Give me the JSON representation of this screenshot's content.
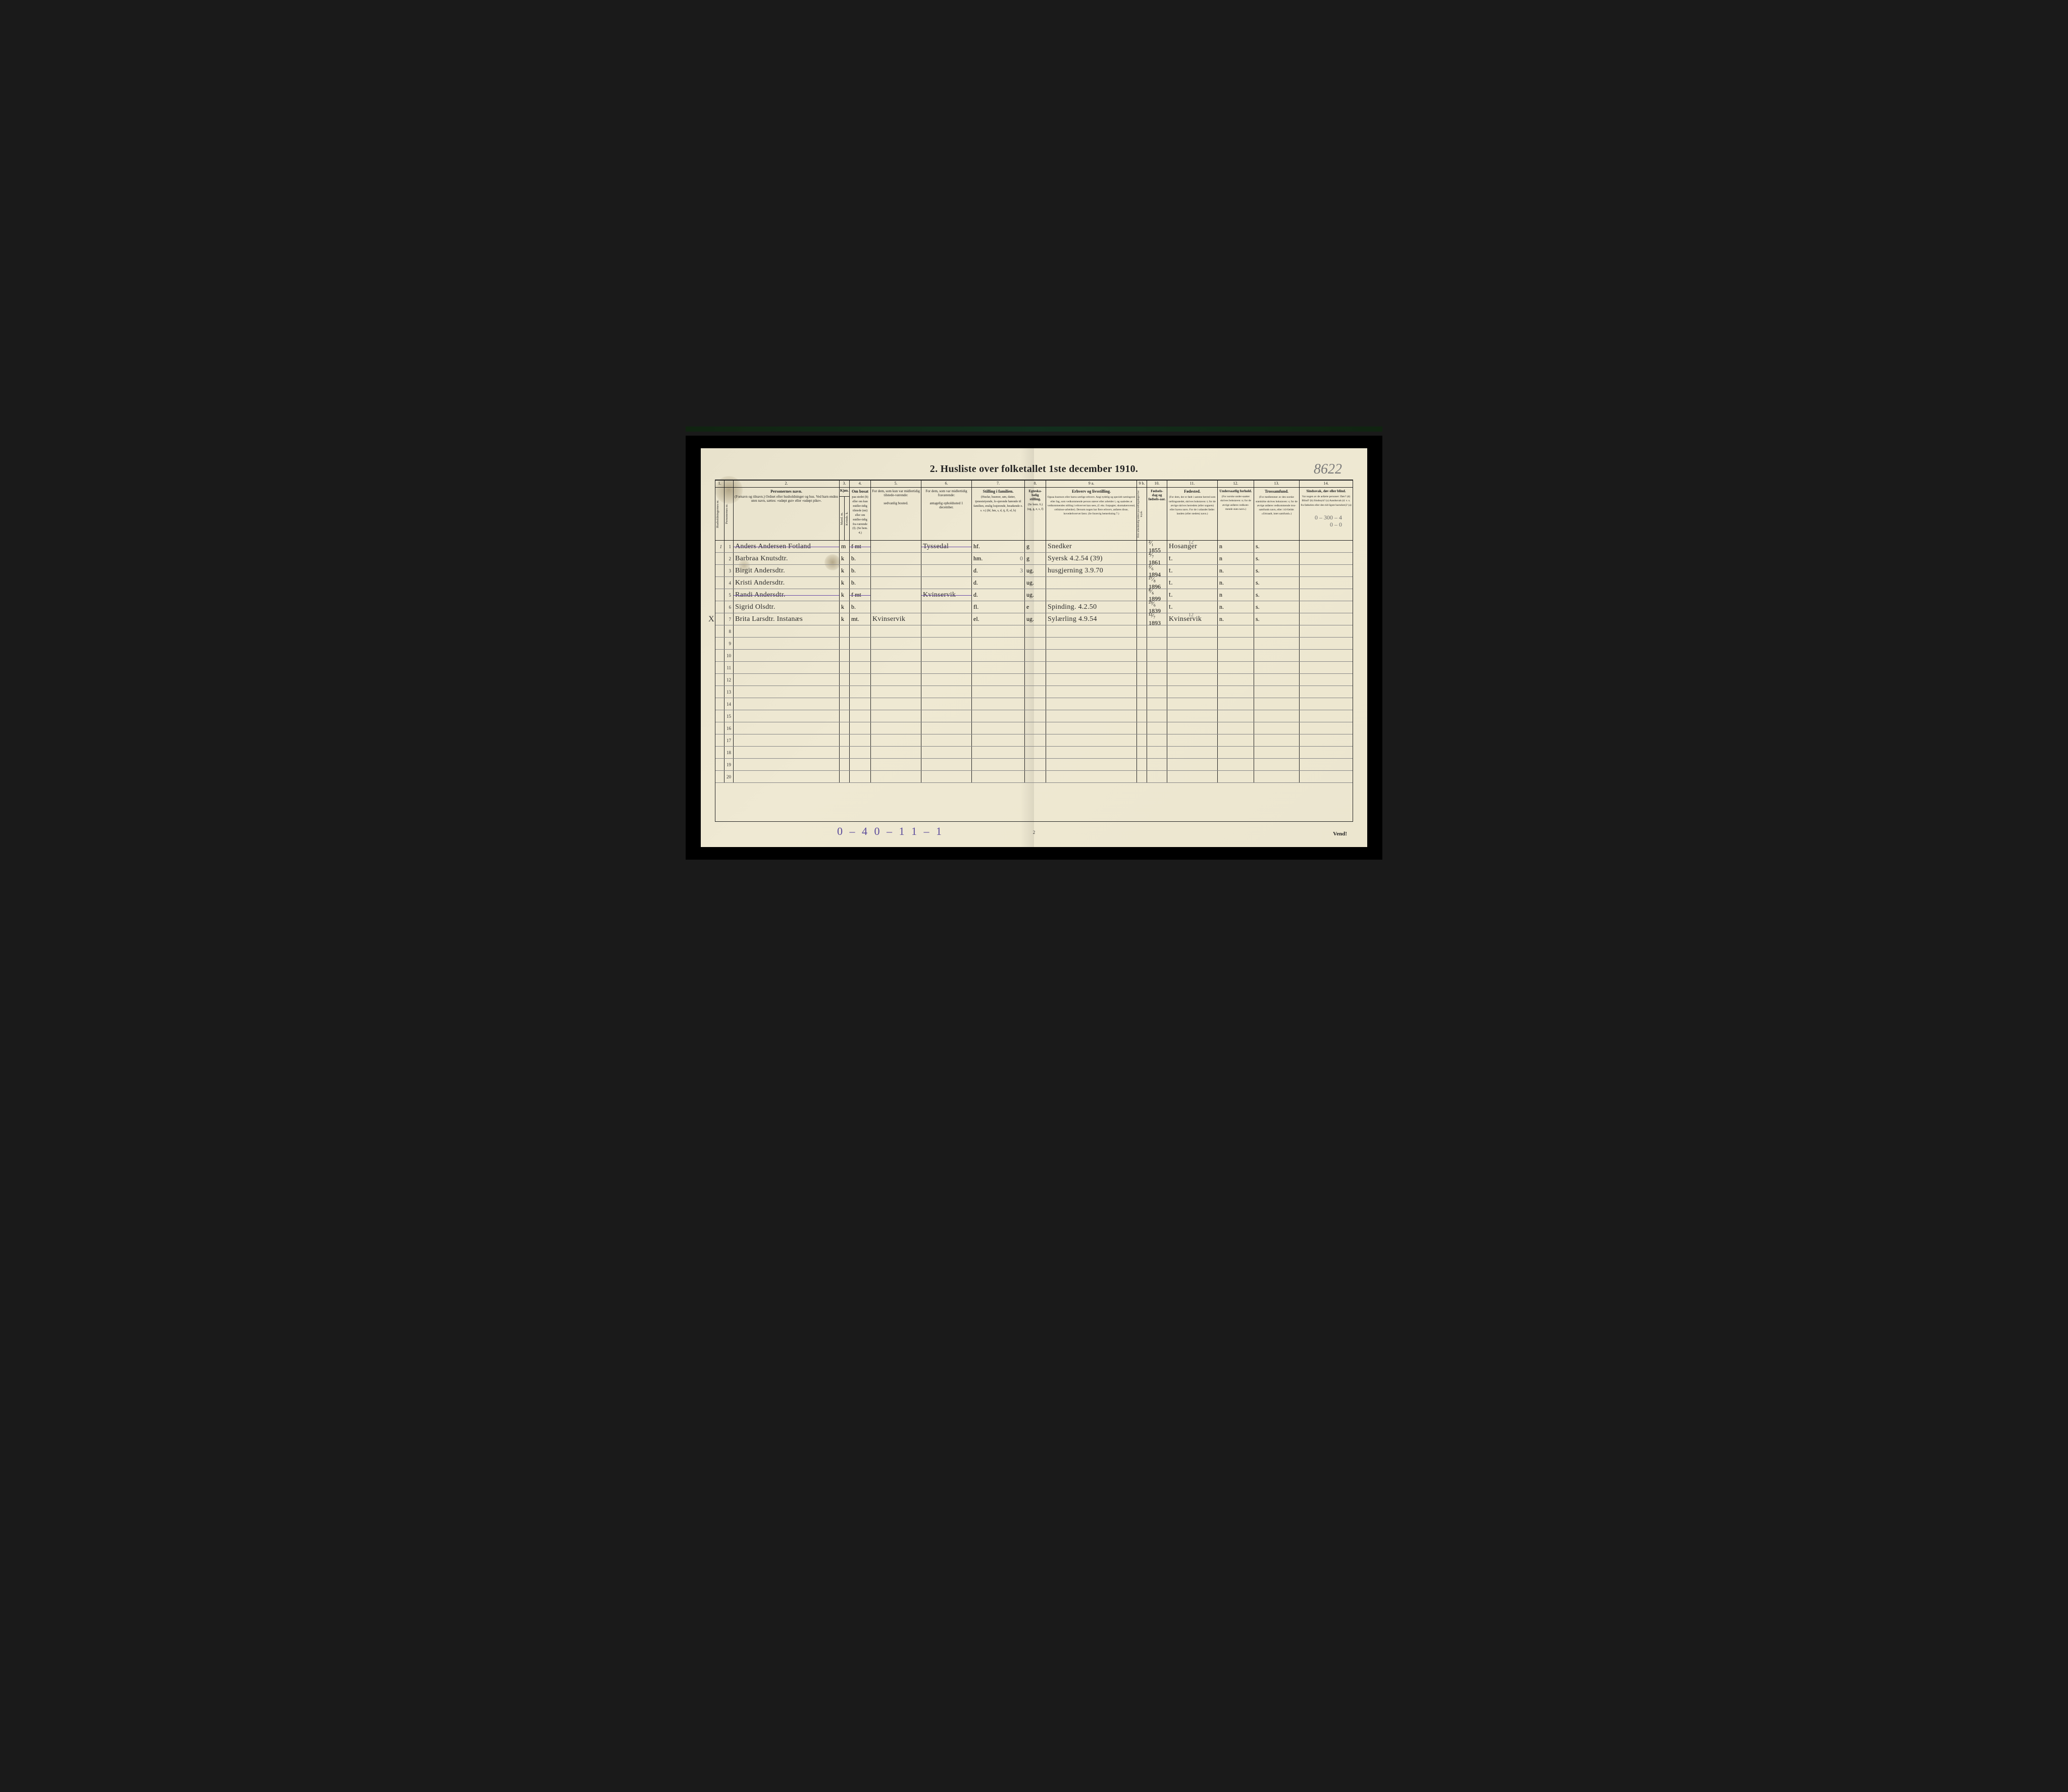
{
  "title": "2.  Husliste over folketallet 1ste december 1910.",
  "pencil_topright": "8622",
  "bottom_pencil": "0 – 4   0 – 1    1 – 1",
  "page_num": "2",
  "vend": "Vend!",
  "annot_lines": [
    "0 – 300 – 4",
    "0 – 0"
  ],
  "col_nums": [
    "1.",
    "",
    "2.",
    "3.",
    "4.",
    "5.",
    "6.",
    "7.",
    "8.",
    "9 a.",
    "9 b.",
    "10.",
    "11.",
    "12.",
    "13.",
    "14."
  ],
  "headers": {
    "c1": "Husholdningernes nr.",
    "c1b": "Personernes nr.",
    "c2_title": "Personernes navn.",
    "c2_sub": "(Fornavn og tilnavn.)\nOrdnet efter husholdninger og hus.\nVed barn endnu uten navn, sættes: «udøpt gut» eller «udøpt pike».",
    "c3_title": "Kjøn.",
    "c3_sub": "Mand. m.  Kvinde. k.",
    "c4_title": "Om bosat",
    "c4_sub": "paa stedet (b) eller om kun midler-tidig tilstede (mt) eller om midler-tidig fra-værende (f). (Se bem. 4.)",
    "c5_title": "For dem, som kun var midlertidig tilstede-værende:",
    "c5_sub": "sedvanlig bosted.",
    "c6_title": "For dem, som var midlertidig fraværende:",
    "c6_sub": "antagelig opholdssted 1 december.",
    "c7_title": "Stilling i familien.",
    "c7_sub": "(Husfar, husmor, søn, datter, tjenestetyende, lo-sjerende hørende til familien, enslig losjerende, besøkende o. s. v.) (hf, hm, s, d, tj, fl, el, b)",
    "c8_title": "Egteska-belig stilling.",
    "c8_sub": "(Se bem. 6.) (ug, g, e, s, f)",
    "c9a_title": "Erhverv og livsstilling.",
    "c9a_sub": "Ogsaa husmors eller barns særlige erhverv. Angi tydelig og specielt næringsvei eller fag, som vedkommende person utøver eller arbeider i, og saaledes at vedkommendes stilling i erhvervet kan sees, (f. eks. forpagter, skomakersvend, cellulose-arbeider). Dersom nogen har flere erhverv, anføres disse, hovederhvervet først. (Se forøvrig bemerkning 7.)",
    "c9b": "Hvis arbeidsledig sættes paa tællingsdagen her kryds.",
    "c10_title": "Fødsels-dag og fødsels-aar.",
    "c11_title": "Fødested.",
    "c11_sub": "(For dem, der er født i samme herred som tællingsstedet, skrives bokstaven: t; for de øvrige skrives herredets (eller sognets) eller byens navn. For de i utlandet fødte: landets (eller stedets) navn.)",
    "c12_title": "Undersaatlig forhold.",
    "c12_sub": "(For norske under-saatter skrives bokstaven: n; for de øvrige anføres vedkom-mende stats navn.)",
    "c13_title": "Trossamfund.",
    "c13_sub": "(For medlemmer av den norske statskirke skrives bokstaven: s; for de øvrige anføres vedkommende tros-samfunds navn, eller i til-fælde: «Uttraadt, intet samfund».)",
    "c14_title": "Sindssvak, døv eller blind.",
    "c14_sub": "Var nogen av de anførte personer: Døv? (d) Blind? (b) Sindssyk? (s) Aandssvak (d. v. s. fra fødselen eller den tid-ligste barndom)? (a)"
  },
  "rows": [
    {
      "n1": "1",
      "n2": "1",
      "name": "Anders Andersen Fotland",
      "kj": "m",
      "bos": "f  mt",
      "c5": "",
      "c6": "Tyssedal",
      "c7": "hf.",
      "c8": "g",
      "c9": "Snedker",
      "c10": "²⁄₁ 1855",
      "c11": "Hosanger",
      "c11top": "12",
      "c12": "n",
      "c13": "s.",
      "strike": true
    },
    {
      "n1": "",
      "n2": "2",
      "name": "Barbraa Knutsdtr.",
      "kj": "k",
      "bos": "b.",
      "c5": "",
      "c6": "",
      "c7": "hm.",
      "c7r": "0",
      "c8": "g",
      "c9": "Syersk  4.2.54 (39)",
      "c10": "⁴⁄₇ 1861",
      "c11": "t.",
      "c12": "n",
      "c13": "s."
    },
    {
      "n1": "",
      "n2": "3",
      "name": "Birgit Andersdtr.",
      "kj": "k",
      "bos": "b.",
      "c5": "",
      "c6": "",
      "c7": "d.",
      "c7r": "3",
      "c8": "ug.",
      "c9": "husgjerning 3.9.70",
      "c10": "²⁄₆ 1894",
      "c11": "t.",
      "c12": "n.",
      "c13": "s."
    },
    {
      "n1": "",
      "n2": "4",
      "name": "Kristi Andersdtr.",
      "kj": "k",
      "bos": "b.",
      "c5": "",
      "c6": "",
      "c7": "d.",
      "c8": "ug.",
      "c9": "",
      "c10": "²⁷⁄₈ 1896",
      "c11": "t.",
      "c12": "n.",
      "c13": "s."
    },
    {
      "n1": "",
      "n2": "5",
      "name": "Randi Andersdtr.",
      "kj": "k",
      "bos": "f  mt",
      "c5": "",
      "c6": "Kvinservik",
      "c7": "d.",
      "c8": "ug.",
      "c9": "",
      "c10": "⁸⁄₆ 1899",
      "c11": "t.",
      "c12": "n",
      "c13": "s.",
      "strike": true
    },
    {
      "n1": "",
      "n2": "6",
      "name": "Sigrid Olsdtr.",
      "kj": "k",
      "bos": "b.",
      "c5": "",
      "c6": "",
      "c7": "fl.",
      "c8": "e",
      "c9": "Spinding. 4.2.50",
      "c10": "²⁹⁄₆ 1839",
      "c11": "t.",
      "c12": "n.",
      "c13": "s."
    },
    {
      "n1": "",
      "n2": "7",
      "name": "Brita Larsdtr. Instanæs",
      "kj": "k",
      "bos": "mt.",
      "c5": "Kvinservik",
      "c6": "",
      "c7": "el.",
      "c8": "ug.",
      "c9": "Sylærling 4.9.54",
      "c10": "¹²⁄₇ 1893",
      "c11": "Kvinservik",
      "c11top": "12",
      "c12": "n.",
      "c13": "s.",
      "xmark": true
    }
  ],
  "empty_rows": [
    8,
    9,
    10,
    11,
    12,
    13,
    14,
    15,
    16,
    17,
    18,
    19,
    20
  ]
}
